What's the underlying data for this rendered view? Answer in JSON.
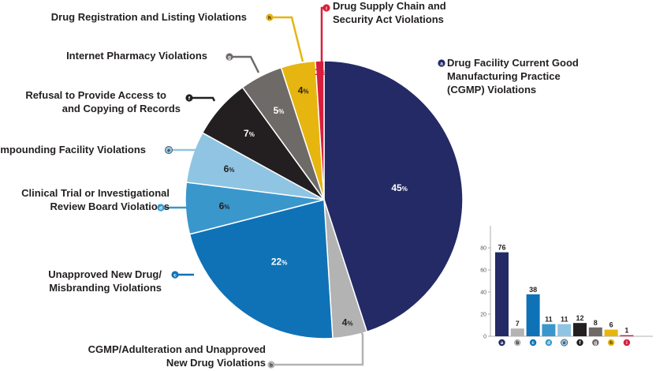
{
  "chart_data": [
    {
      "type": "pie",
      "unit": "%",
      "slices": [
        {
          "key": "a",
          "label": "Drug Facility Current Good Manufacturing Practice (CGMP) Violations",
          "lines": [
            "Drug Facility Current Good",
            "Manufacturing Practice",
            "(CGMP) Violations"
          ],
          "value": 45,
          "color": "#232a65"
        },
        {
          "key": "b",
          "label": "CGMP/Adulteration and Unapproved New Drug Violations",
          "lines": [
            "CGMP/Adulteration and Unapproved",
            "New Drug Violations"
          ],
          "value": 4,
          "color": "#b3b3b3"
        },
        {
          "key": "c",
          "label": "Unapproved New Drug/ Misbranding Violations",
          "lines": [
            "Unapproved New Drug/",
            "Misbranding Violations"
          ],
          "value": 22,
          "color": "#0f72b6"
        },
        {
          "key": "d",
          "label": "Clinical Trial or Investigational Review Board Violations",
          "lines": [
            "Clinical Trial or Investigational",
            "Review Board Violations"
          ],
          "value": 6,
          "color": "#3a97cc"
        },
        {
          "key": "e",
          "label": "Compounding Facility Violations",
          "lines": [
            "Compounding Facility Violations"
          ],
          "value": 6,
          "color": "#8fc5e3"
        },
        {
          "key": "f",
          "label": "Refusal to Provide Access to and Copying of Records",
          "lines": [
            "Refusal to Provide Access to",
            "and Copying of Records"
          ],
          "value": 7,
          "color": "#231f20"
        },
        {
          "key": "g",
          "label": "Internet Pharmacy Violations",
          "lines": [
            "Internet Pharmacy Violations"
          ],
          "value": 5,
          "color": "#6d6a67"
        },
        {
          "key": "h",
          "label": "Drug Registration and Listing Violations",
          "lines": [
            "Drug Registration and Listing Violations"
          ],
          "value": 4,
          "color": "#e6b50f"
        },
        {
          "key": "i",
          "label": "Drug Supply Chain and Security Act Violations",
          "lines": [
            "Drug Supply Chain and",
            "Security Act Violations"
          ],
          "value": 1,
          "color": "#d81e3c"
        }
      ]
    },
    {
      "type": "bar",
      "categories": [
        "a",
        "b",
        "c",
        "d",
        "e",
        "f",
        "g",
        "h",
        "i"
      ],
      "values": [
        76,
        7,
        38,
        11,
        11,
        12,
        8,
        6,
        1
      ],
      "colors": [
        "#232a65",
        "#b3b3b3",
        "#0f72b6",
        "#3a97cc",
        "#8fc5e3",
        "#231f20",
        "#6d6a67",
        "#e6b50f",
        "#d81e3c"
      ],
      "ylim": [
        0,
        80
      ],
      "yticks": [
        0,
        20,
        40,
        60,
        80
      ]
    }
  ]
}
